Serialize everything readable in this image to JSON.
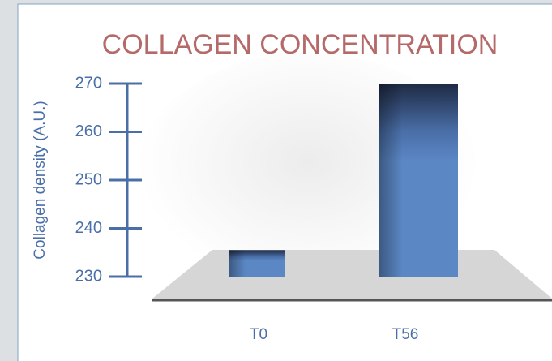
{
  "chart_data": {
    "type": "bar",
    "title": "COLLAGEN CONCENTRATION",
    "y_label": "Collagen density (A.U.)",
    "categories": [
      "T0",
      "T56"
    ],
    "values": [
      235.5,
      270
    ],
    "color": "#5b87c5",
    "ylim": [
      230,
      270
    ],
    "yticks": [
      230,
      240,
      250,
      260,
      270
    ]
  }
}
